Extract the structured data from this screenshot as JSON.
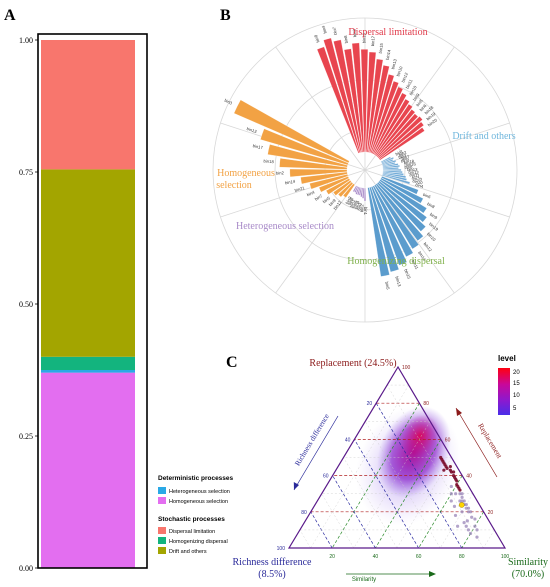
{
  "panels": {
    "a": "A",
    "b": "B",
    "c": "C"
  },
  "legend": {
    "det_title": "Deterministic processes",
    "det_items": [
      "Heterogeneous selection",
      "Homogeneous selection"
    ],
    "sto_title": "Stochastic processes",
    "sto_items": [
      "Dispersal limitation",
      "Homogenizing dispersal",
      "Drift and others"
    ]
  },
  "polar_labels": {
    "dispersal": "Dispersal limitation",
    "drift": "Drift and others",
    "homsel_1": "Homogeneous",
    "homsel_2": "selection",
    "hetsel": "Heterogeneous selection",
    "homdisp": "Homogenizing dispersal"
  },
  "ternary": {
    "top_label": "Replacement (24.5%)",
    "left_label_1": "Richness difference",
    "left_label_2": "(8.5%)",
    "right_label_1": "Similarity",
    "right_label_2": "(70.0%)",
    "left_axis_title": "Richness difference",
    "right_axis_title": "Replacement",
    "bottom_axis_title": "Similarity",
    "ticks": [
      "20",
      "40",
      "60",
      "80",
      "100"
    ],
    "colorbar_title": "level",
    "colorbar_ticks": [
      "20",
      "15",
      "10",
      "5"
    ]
  },
  "chart_data": [
    {
      "type": "bar",
      "title": "A",
      "stacked": true,
      "categories": [
        ""
      ],
      "ylim": [
        0,
        1
      ],
      "yticks": [
        "0.00",
        "0.25",
        "0.50",
        "0.75",
        "1.00"
      ],
      "series": [
        {
          "name": "Homogeneous selection",
          "values": [
            0.37
          ]
        },
        {
          "name": "Heterogeneous selection",
          "values": [
            0.005
          ]
        },
        {
          "name": "Homogenizing dispersal",
          "values": [
            0.025
          ]
        },
        {
          "name": "Drift and others",
          "values": [
            0.355
          ]
        },
        {
          "name": "Dispersal limitation",
          "values": [
            0.245
          ]
        }
      ],
      "colors": {
        "Homogeneous selection": "#e36ef0",
        "Heterogeneous selection": "#2aa9e6",
        "Homogenizing dispersal": "#13b47e",
        "Drift and others": "#a3a500",
        "Dispersal limitation": "#f8766d"
      }
    },
    {
      "type": "bar",
      "polar": true,
      "title": "B",
      "groups": [
        {
          "name": "Dispersal limitation",
          "color": "#e8454f",
          "values": [
            0.86,
            0.91,
            0.88,
            0.8,
            0.84,
            0.79,
            0.77,
            0.72,
            0.68,
            0.62,
            0.58,
            0.55,
            0.52,
            0.49,
            0.47,
            0.45,
            0.44,
            0.45,
            0.43,
            0.41
          ],
          "labels": [
            "bin8",
            "bin4",
            "bin7",
            "bin8",
            "bin3",
            "bin16",
            "bin17",
            "bin15",
            "bin14",
            "bin13",
            "bin10",
            "bin12",
            "bin11",
            "bin10",
            "bin9",
            "bin5",
            "bin6",
            "bin18",
            "bin19",
            "bin20"
          ]
        },
        {
          "name": "Drift and others",
          "color": "#6fa9d6",
          "values": [
            0.08,
            0.1,
            0.09,
            0.11,
            0.1,
            0.12,
            0.13,
            0.12,
            0.14,
            0.15,
            0.16,
            0.18,
            0.19,
            0.22
          ],
          "labels": [
            "bin1",
            "bin2",
            "bin3",
            "bin7",
            "bin9",
            "bin18",
            "bin16",
            "bin8",
            "bin13",
            "bin12",
            "bin11",
            "bin20",
            "bin10",
            "bin4"
          ]
        },
        {
          "name": "Homogenizing dispersal",
          "color": "#5b9ccd",
          "values": [
            0.3,
            0.36,
            0.42,
            0.46,
            0.5,
            0.54,
            0.57,
            0.6,
            0.64,
            0.67,
            0.69
          ],
          "labels": [
            "bin6",
            "bin8",
            "bin9",
            "bin19",
            "bin10",
            "bin12",
            "bin14",
            "bin11",
            "bin15",
            "bin13",
            "bin5"
          ]
        },
        {
          "name": "Heterogeneous selection",
          "color": "#a88ac8",
          "values": [
            0.1,
            0.08,
            0.07,
            0.06,
            0.06,
            0.06,
            0.05,
            0.05
          ],
          "labels": [
            "bin1",
            "bin2",
            "bin3",
            "bin4",
            "bin6",
            "bin7",
            "bin8",
            "bin9"
          ]
        },
        {
          "name": "Homogeneous selection",
          "color": "#f2a244",
          "values": [
            0.12,
            0.14,
            0.16,
            0.2,
            0.24,
            0.3,
            0.36,
            0.44,
            0.52,
            0.62,
            0.7,
            0.96
          ],
          "labels": [
            "bin12",
            "bin9",
            "bin5",
            "bin7",
            "bin4",
            "bin21",
            "bin14",
            "bin2",
            "bin18",
            "bin17",
            "bin13",
            "bin3"
          ]
        }
      ]
    },
    {
      "type": "scatter",
      "ternary": true,
      "title": "C",
      "axes": [
        "Similarity",
        "Replacement",
        "Richness difference"
      ],
      "mean_point": {
        "Similarity": 70.0,
        "Replacement": 24.5,
        "Richness difference": 8.5
      },
      "points": [
        [
          55,
          42,
          3
        ],
        [
          52,
          45,
          3
        ],
        [
          58,
          38,
          4
        ],
        [
          50,
          45,
          5
        ],
        [
          60,
          35,
          5
        ],
        [
          48,
          47,
          5
        ],
        [
          62,
          33,
          5
        ],
        [
          45,
          50,
          5
        ],
        [
          56,
          40,
          4
        ],
        [
          53,
          43,
          4
        ],
        [
          49,
          46,
          5
        ],
        [
          59,
          37,
          4
        ],
        [
          51,
          44,
          5
        ],
        [
          57,
          39,
          4
        ],
        [
          54,
          42,
          4
        ],
        [
          47,
          48,
          5
        ],
        [
          63,
          32,
          5
        ],
        [
          46,
          49,
          5
        ],
        [
          61,
          34,
          5
        ],
        [
          50,
          43,
          7
        ],
        [
          65,
          30,
          5
        ],
        [
          58,
          34,
          8
        ],
        [
          68,
          26,
          6
        ],
        [
          66,
          28,
          6
        ],
        [
          70,
          24,
          6
        ],
        [
          72,
          22,
          6
        ],
        [
          64,
          30,
          6
        ],
        [
          74,
          20,
          6
        ],
        [
          69,
          24,
          7
        ],
        [
          67,
          26,
          7
        ],
        [
          76,
          17,
          7
        ],
        [
          73,
          20,
          7
        ],
        [
          78,
          16,
          6
        ],
        [
          71,
          22,
          7
        ],
        [
          62,
          30,
          8
        ],
        [
          60,
          30,
          10
        ],
        [
          66,
          26,
          8
        ],
        [
          75,
          15,
          10
        ],
        [
          80,
          12,
          8
        ],
        [
          82,
          10,
          8
        ],
        [
          70,
          20,
          10
        ],
        [
          65,
          23,
          12
        ],
        [
          78,
          10,
          12
        ],
        [
          72,
          12,
          16
        ],
        [
          68,
          18,
          14
        ],
        [
          74,
          14,
          12
        ],
        [
          62,
          26,
          12
        ],
        [
          76,
          12,
          12
        ],
        [
          84,
          6,
          10
        ],
        [
          80,
          8,
          12
        ]
      ]
    }
  ]
}
